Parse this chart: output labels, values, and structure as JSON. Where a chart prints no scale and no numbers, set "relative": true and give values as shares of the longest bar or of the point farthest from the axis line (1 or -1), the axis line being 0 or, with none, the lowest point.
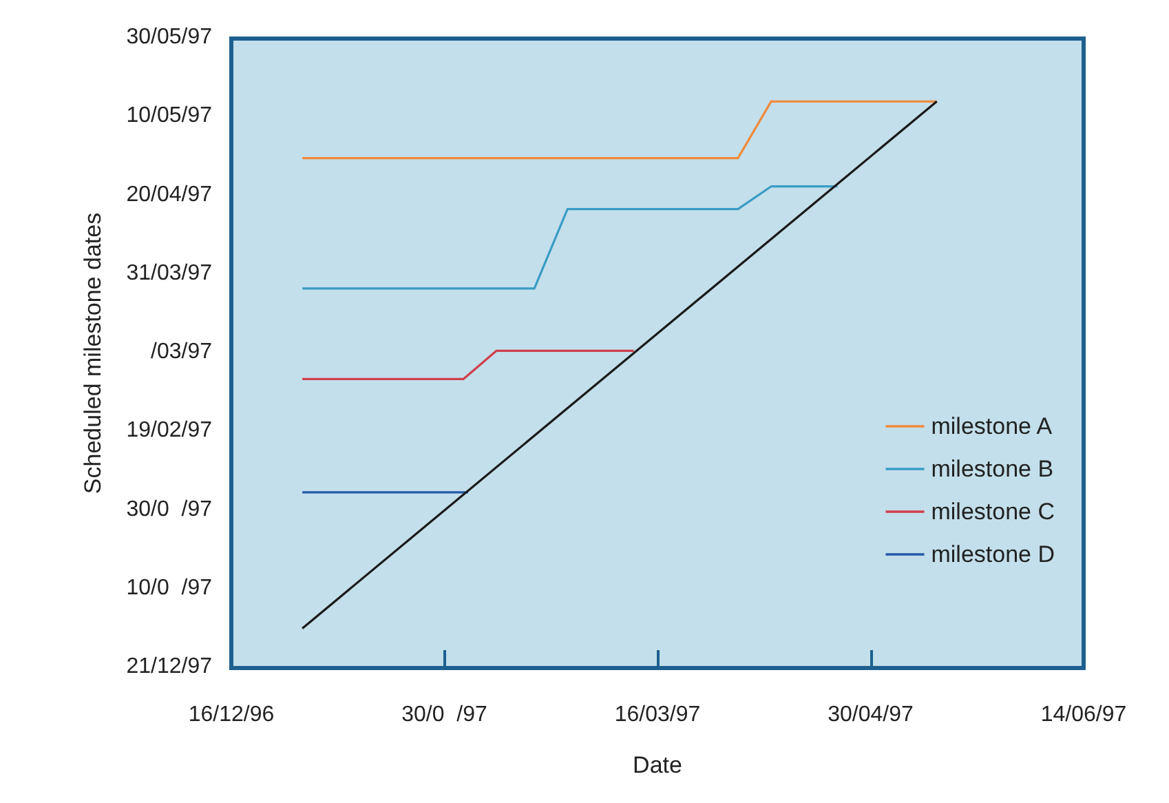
{
  "chart_data": {
    "type": "line",
    "relative": true,
    "xlabel": "Date",
    "ylabel": "Scheduled milestone dates",
    "xlim": [
      "1996-12-16",
      "1997-06-14"
    ],
    "xticks": [
      {
        "value": "1996-12-16",
        "label": "16/12/96"
      },
      {
        "value": "1997-01-30",
        "label": "30/0  /97"
      },
      {
        "value": "1997-03-16",
        "label": "16/03/97"
      },
      {
        "value": "1997-04-30",
        "label": "30/04/97"
      },
      {
        "value": "1997-06-14",
        "label": "14/06/97"
      }
    ],
    "annotations": [
      "30/05/97",
      "10/05/97",
      "20/04/97",
      "31/03/97",
      "/03/97",
      "19/02/97",
      "30/0  /97",
      "10/0  /97",
      "21/12/97"
    ],
    "series": [
      {
        "name": "milestone A",
        "color": "#f08a3c",
        "x": [
          "1996-12-31",
          "1997-04-02",
          "1997-04-09",
          "1997-05-14"
        ],
        "values": [
          0.9,
          0.9,
          1,
          1
        ]
      },
      {
        "name": "milestone B",
        "color": "#3a9cc4",
        "x": [
          "1996-12-31",
          "1997-02-18",
          "1997-02-25",
          "1997-04-02",
          "1997-04-09",
          "1997-04-23"
        ],
        "values": [
          0.67,
          0.67,
          0.81,
          0.81,
          0.85,
          0.85
        ]
      },
      {
        "name": "milestone C",
        "color": "#d0404c",
        "x": [
          "1996-12-31",
          "1997-02-03",
          "1997-02-10",
          "1997-03-11"
        ],
        "values": [
          0.51,
          0.51,
          0.56,
          0.56
        ]
      },
      {
        "name": "milestone D",
        "color": "#2458a8",
        "x": [
          "1996-12-31",
          "1997-02-04"
        ],
        "values": [
          0.31,
          0.31
        ]
      },
      {
        "color": "#1a1a1a",
        "x": [
          "1996-12-31",
          "1997-05-14"
        ],
        "values": [
          0.07,
          1
        ]
      }
    ],
    "legend": "right",
    "grid": false,
    "marker": "none",
    "line_style": "solid"
  }
}
